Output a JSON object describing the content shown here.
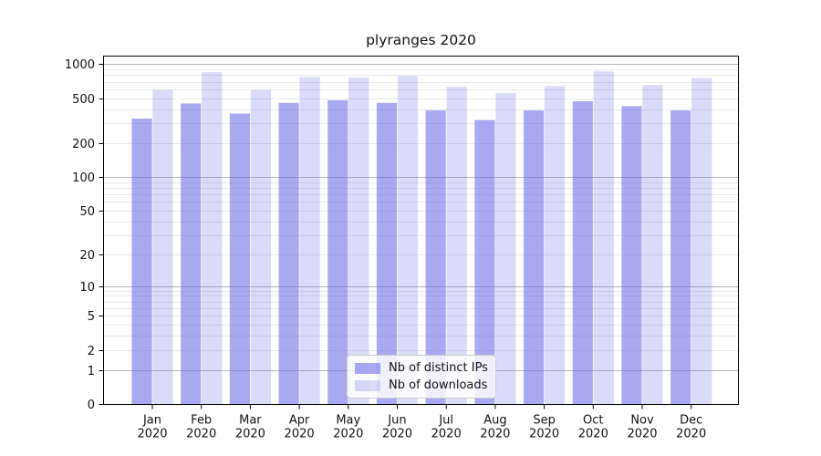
{
  "chart_data": {
    "type": "bar",
    "title": "plyranges 2020",
    "categories": [
      "Jan",
      "Feb",
      "Mar",
      "Apr",
      "May",
      "Jun",
      "Jul",
      "Aug",
      "Sep",
      "Oct",
      "Nov",
      "Dec"
    ],
    "x_tick_label_year": "2020",
    "series": [
      {
        "name": "Nb of distinct IPs",
        "key": "ips",
        "color": "rgba(99,99,230,0.55)",
        "values": [
          330,
          450,
          365,
          455,
          480,
          455,
          390,
          320,
          390,
          470,
          425,
          390
        ]
      },
      {
        "name": "Nb of downloads",
        "key": "downloads",
        "color": "rgba(99,99,230,0.24)",
        "values": [
          590,
          850,
          590,
          770,
          765,
          790,
          630,
          555,
          640,
          865,
          655,
          755
        ]
      }
    ],
    "yscale": "log1p",
    "yticks": [
      1000,
      500,
      200,
      100,
      50,
      20,
      10,
      5,
      2,
      1,
      0
    ],
    "ylim": [
      0,
      1180
    ],
    "grid": true,
    "legend_position": "lower center",
    "colors": {
      "major_gridline": "#b3b3b3",
      "minor_gridline": "#e8e8e8",
      "spine": "#000000",
      "text": "#111111"
    }
  }
}
